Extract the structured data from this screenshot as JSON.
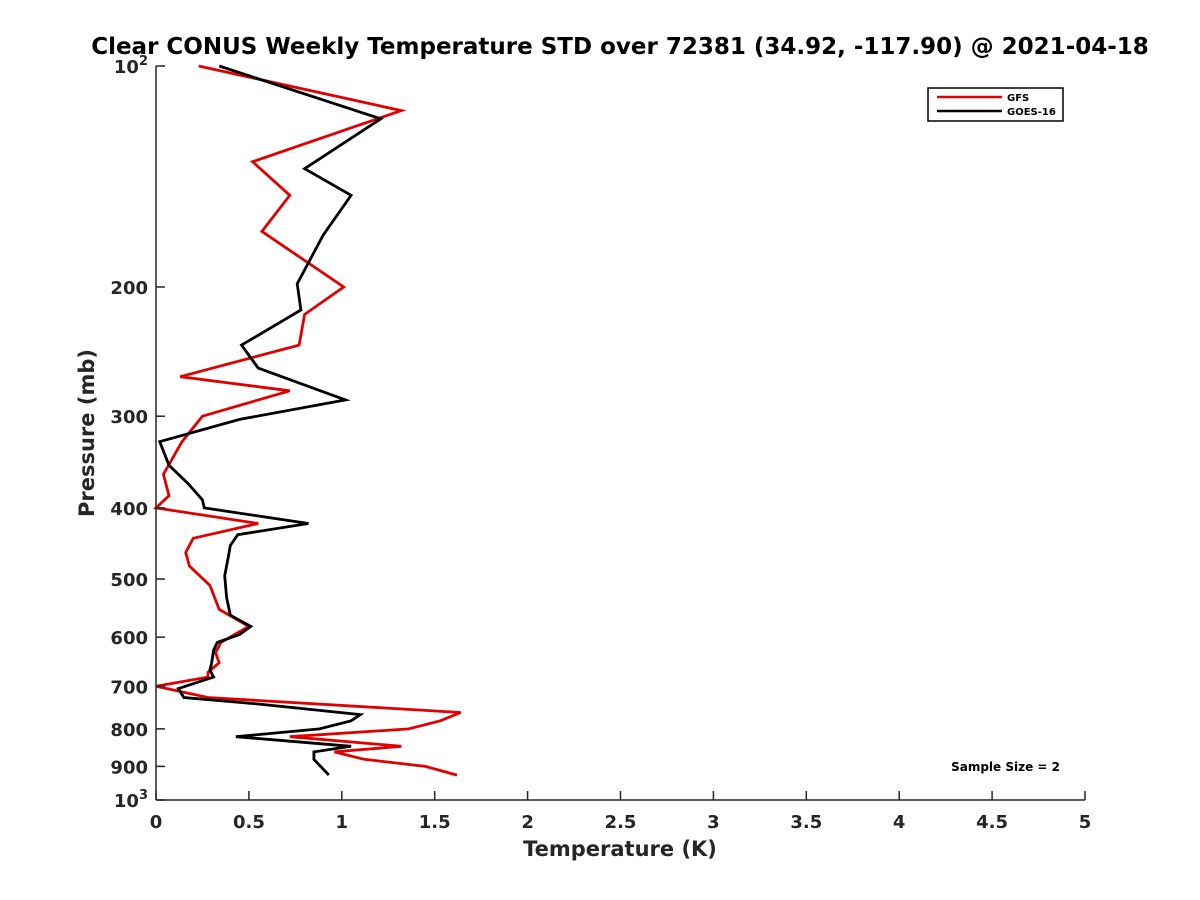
{
  "chart_data": {
    "type": "line",
    "title": "Clear CONUS Weekly Temperature STD over 72381 (34.92, -117.90) @ 2021-04-18",
    "xlabel": "Temperature (K)",
    "ylabel": "Pressure (mb)",
    "xlim": [
      0,
      5
    ],
    "ylim": [
      100,
      1000
    ],
    "yscale": "log",
    "y_reversed": true,
    "x_ticks": [
      "0",
      "0.5",
      "1",
      "1.5",
      "2",
      "2.5",
      "3",
      "3.5",
      "4",
      "4.5",
      "5"
    ],
    "x_tick_values": [
      0,
      0.5,
      1,
      1.5,
      2,
      2.5,
      3,
      3.5,
      4,
      4.5,
      5
    ],
    "y_ticks": [
      {
        "value": 100,
        "base": "10",
        "exp": "2"
      },
      {
        "value": 200,
        "label": "200"
      },
      {
        "value": 300,
        "label": "300"
      },
      {
        "value": 400,
        "label": "400"
      },
      {
        "value": 500,
        "label": "500"
      },
      {
        "value": 600,
        "label": "600"
      },
      {
        "value": 700,
        "label": "700"
      },
      {
        "value": 800,
        "label": "800"
      },
      {
        "value": 900,
        "label": "900"
      },
      {
        "value": 1000,
        "base": "10",
        "exp": "3"
      }
    ],
    "legend_position": "top-right",
    "grid": false,
    "annotation": "Sample Size = 2",
    "series": [
      {
        "name": "GFS",
        "color": "#e00000",
        "points": [
          [
            0.23,
            100
          ],
          [
            1.32,
            115
          ],
          [
            0.52,
            135
          ],
          [
            0.72,
            150
          ],
          [
            0.57,
            168
          ],
          [
            1.01,
            200
          ],
          [
            0.8,
            218
          ],
          [
            0.77,
            240
          ],
          [
            0.13,
            265
          ],
          [
            0.72,
            277
          ],
          [
            0.25,
            300
          ],
          [
            0.14,
            325
          ],
          [
            0.04,
            360
          ],
          [
            0.07,
            385
          ],
          [
            0.0,
            400
          ],
          [
            0.55,
            420
          ],
          [
            0.2,
            440
          ],
          [
            0.16,
            460
          ],
          [
            0.18,
            480
          ],
          [
            0.29,
            510
          ],
          [
            0.34,
            550
          ],
          [
            0.5,
            580
          ],
          [
            0.35,
            610
          ],
          [
            0.32,
            630
          ],
          [
            0.34,
            650
          ],
          [
            0.28,
            670
          ],
          [
            0.28,
            680
          ],
          [
            0.0,
            700
          ],
          [
            0.28,
            725
          ],
          [
            1.64,
            760
          ],
          [
            1.53,
            780
          ],
          [
            1.36,
            800
          ],
          [
            0.72,
            820
          ],
          [
            1.32,
            845
          ],
          [
            0.96,
            860
          ],
          [
            1.12,
            880
          ],
          [
            1.45,
            900
          ],
          [
            1.62,
            925
          ]
        ]
      },
      {
        "name": "GOES-16",
        "color": "#000000",
        "points": [
          [
            0.34,
            100
          ],
          [
            1.21,
            118
          ],
          [
            0.8,
            138
          ],
          [
            1.05,
            150
          ],
          [
            0.9,
            170
          ],
          [
            0.76,
            198
          ],
          [
            0.78,
            215
          ],
          [
            0.46,
            240
          ],
          [
            0.55,
            258
          ],
          [
            1.02,
            285
          ],
          [
            0.45,
            303
          ],
          [
            0.02,
            325
          ],
          [
            0.07,
            350
          ],
          [
            0.17,
            370
          ],
          [
            0.25,
            390
          ],
          [
            0.26,
            400
          ],
          [
            0.82,
            420
          ],
          [
            0.44,
            435
          ],
          [
            0.4,
            450
          ],
          [
            0.39,
            465
          ],
          [
            0.37,
            495
          ],
          [
            0.38,
            530
          ],
          [
            0.4,
            560
          ],
          [
            0.51,
            580
          ],
          [
            0.45,
            595
          ],
          [
            0.33,
            610
          ],
          [
            0.31,
            625
          ],
          [
            0.3,
            650
          ],
          [
            0.29,
            665
          ],
          [
            0.31,
            680
          ],
          [
            0.12,
            705
          ],
          [
            0.15,
            725
          ],
          [
            0.55,
            740
          ],
          [
            1.1,
            765
          ],
          [
            1.05,
            780
          ],
          [
            0.88,
            800
          ],
          [
            0.43,
            820
          ],
          [
            1.05,
            845
          ],
          [
            0.85,
            860
          ],
          [
            0.85,
            880
          ],
          [
            0.93,
            925
          ]
        ]
      }
    ]
  }
}
